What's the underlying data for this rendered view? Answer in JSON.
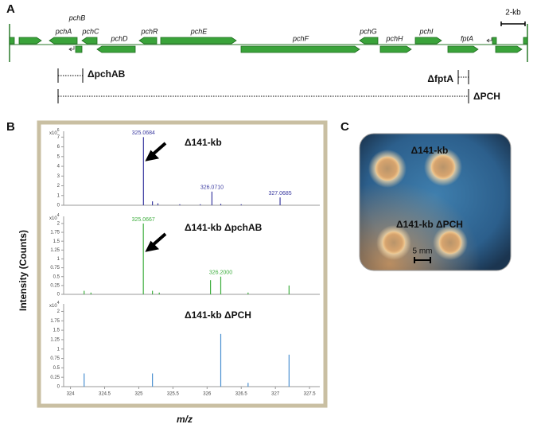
{
  "panel_labels": [
    "A",
    "B",
    "C"
  ],
  "gene_map": {
    "genes": [
      "pchA",
      "pchB",
      "pchC",
      "pchD",
      "pchR",
      "pchE",
      "pchF",
      "pchG",
      "pchH",
      "pchI",
      "fptA"
    ],
    "scale_label": "2-kb",
    "deletions": [
      "ΔpchAB",
      "ΔfptA",
      "ΔPCH"
    ]
  },
  "spectra": {
    "y_label": "Intensity (Counts)",
    "x_label": "m/z"
  },
  "chart_data": [
    {
      "type": "bar",
      "title": "Δ141-kb",
      "color": "#3a3aa0",
      "x": [
        325.0684,
        325.2,
        325.28,
        325.6,
        325.9,
        326.071,
        326.2,
        326.5,
        327.0685
      ],
      "values": [
        7.0,
        0.4,
        0.2,
        0.1,
        0.1,
        1.4,
        0.15,
        0.1,
        0.8
      ],
      "peak_labels": [
        "325.0684",
        null,
        null,
        null,
        null,
        "326.0710",
        null,
        null,
        "327.0685"
      ],
      "xlim": [
        323.9,
        327.65
      ],
      "ylim": [
        0,
        7.6
      ],
      "yticks": [
        0,
        1,
        2,
        3,
        4,
        5,
        6,
        7
      ],
      "y_multiplier": "x10",
      "y_exponent": "6"
    },
    {
      "type": "bar",
      "title": "Δ141-kb ΔpchAB",
      "color": "#3fae3f",
      "x": [
        324.2,
        324.3,
        325.0667,
        325.2,
        325.3,
        326.05,
        326.2,
        326.6,
        327.2
      ],
      "values": [
        0.1,
        0.05,
        2.0,
        0.1,
        0.05,
        0.4,
        0.5,
        0.05,
        0.25
      ],
      "peak_labels": [
        null,
        null,
        "325.0667",
        null,
        null,
        null,
        "326.2000",
        null,
        null
      ],
      "xlim": [
        323.9,
        327.65
      ],
      "ylim": [
        0,
        2.2
      ],
      "yticks": [
        0,
        0.25,
        0.5,
        0.75,
        1,
        1.25,
        1.5,
        1.75,
        2
      ],
      "y_multiplier": "x10",
      "y_exponent": "4"
    },
    {
      "type": "bar",
      "title": "Δ141-kb ΔPCH",
      "color": "#4a90d0",
      "x": [
        324.2,
        325.2,
        326.2,
        326.6,
        327.2
      ],
      "values": [
        0.35,
        0.35,
        1.4,
        0.1,
        0.85
      ],
      "peak_labels": [
        null,
        null,
        null,
        null,
        null
      ],
      "xlim": [
        323.9,
        327.65
      ],
      "ylim": [
        0,
        2.2
      ],
      "yticks": [
        0,
        0.25,
        0.5,
        0.75,
        1,
        1.25,
        1.5,
        1.75,
        2
      ],
      "xticks": [
        324,
        324.5,
        325,
        325.5,
        326,
        326.5,
        327,
        327.5
      ],
      "y_multiplier": "x10",
      "y_exponent": "4"
    }
  ],
  "photo": {
    "labels": [
      "Δ141-kb",
      "Δ141-kb ΔPCH"
    ],
    "scale": "5 mm"
  }
}
